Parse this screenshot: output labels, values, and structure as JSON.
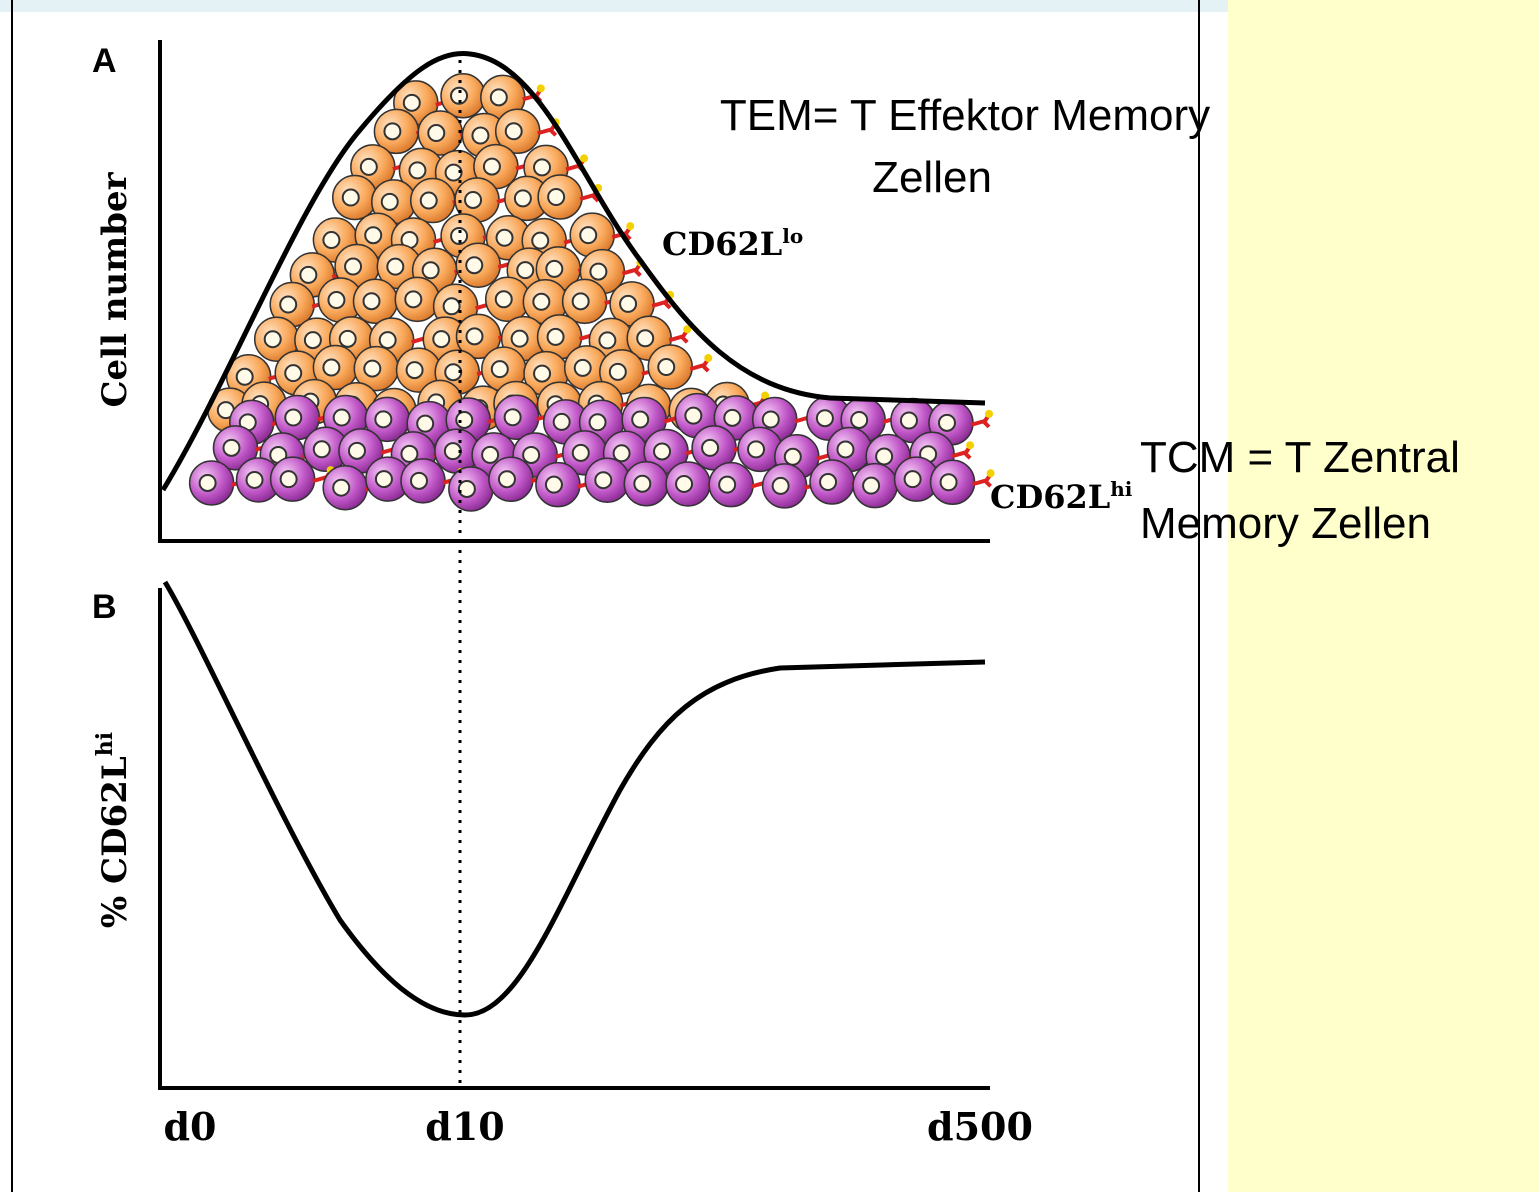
{
  "panel_a": {
    "label": "A",
    "y_axis_label": "Cell number",
    "upper_label": {
      "text": "CD62L",
      "superscript": "lo"
    },
    "lower_label": {
      "text": "CD62L",
      "superscript": "hi"
    }
  },
  "panel_b": {
    "label": "B",
    "y_axis_label": {
      "text": "% CD62L",
      "superscript": "hi"
    }
  },
  "x_labels": [
    "d0",
    "d10",
    "d500"
  ],
  "annotations": {
    "tem": [
      "TEM= T Effektor Memory",
      "Zellen"
    ],
    "tcm": [
      "TCM = T Zentral",
      "Memory Zellen"
    ]
  }
}
